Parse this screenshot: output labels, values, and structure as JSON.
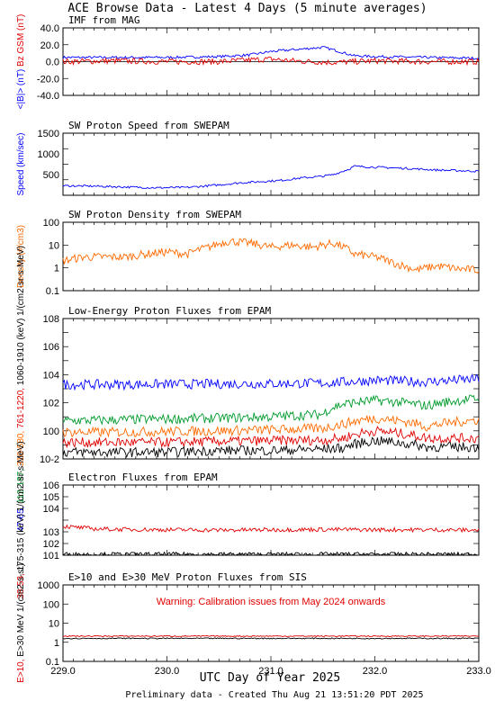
{
  "header": {
    "title": "ACE Browse Data - Latest 4 Days (5 minute averages)"
  },
  "x_axis": {
    "title": "UTC Day of Year 2025",
    "range": [
      229.0,
      233.0
    ],
    "ticks": [
      "229.0",
      "230.0",
      "231.0",
      "232.0",
      "233.0"
    ]
  },
  "footer": {
    "text": "Preliminary data - Created Thu Aug 21 13:51:20 PDT 2025"
  },
  "colors": {
    "blue": "#0000ff",
    "red": "#e00000",
    "green": "#009a2c",
    "orange": "#ff6a00",
    "black": "#000000"
  },
  "chart_data": [
    {
      "type": "line",
      "title": "IMF from MAG",
      "scale": "linear",
      "ylim": [
        -40,
        40
      ],
      "y_ticks": [
        "-40.0",
        "-20.0",
        "0.0",
        "20.0",
        "40.0"
      ],
      "ylabel_parts": [
        {
          "text": "<|B|> (nT)",
          "color": "#0000ff"
        },
        {
          "text": "Bz GSM (nT)",
          "color": "#e00000"
        }
      ],
      "series": [
        {
          "color": "#0000ff",
          "x": [
            229.0,
            229.5,
            230.0,
            230.5,
            230.8,
            231.0,
            231.2,
            231.4,
            231.5,
            231.6,
            231.8,
            232.0,
            232.5,
            233.0
          ],
          "y": [
            5,
            5,
            5,
            6,
            8,
            12,
            14,
            16,
            17,
            14,
            7,
            6,
            5,
            4
          ]
        },
        {
          "color": "#e00000",
          "x": [
            229.0,
            229.5,
            230.0,
            230.5,
            230.8,
            231.0,
            231.2,
            231.4,
            231.6,
            231.8,
            232.0,
            232.5,
            233.0
          ],
          "y": [
            0,
            1,
            0,
            0,
            2,
            3,
            1,
            0,
            -1,
            0,
            1,
            0,
            0
          ]
        }
      ]
    },
    {
      "type": "line",
      "title": "SW Proton Speed from SWEPAM",
      "scale": "linear",
      "ylim": [
        0,
        1500
      ],
      "y_ticks": [
        "500",
        "1000",
        "1500"
      ],
      "ylabel_parts": [
        {
          "text": "Speed (km/sec)",
          "color": "#0000ff"
        }
      ],
      "series": [
        {
          "color": "#0000ff",
          "x": [
            229.0,
            229.3,
            229.6,
            229.9,
            230.2,
            230.5,
            230.7,
            230.9,
            231.1,
            231.3,
            231.5,
            231.6,
            231.75,
            231.8,
            232.0,
            232.3,
            232.6,
            233.0
          ],
          "y": [
            230,
            220,
            200,
            180,
            190,
            250,
            300,
            330,
            360,
            420,
            460,
            500,
            630,
            700,
            680,
            650,
            610,
            580
          ]
        }
      ]
    },
    {
      "type": "line",
      "title": "SW Proton Density from SWEPAM",
      "scale": "log",
      "ylim_exp": [
        -1,
        2
      ],
      "y_ticks": [
        "0.1",
        "1",
        "10",
        "100"
      ],
      "ylabel_parts": [
        {
          "text": "Density (#/cm3)",
          "color": "#ff6a00"
        }
      ],
      "series": [
        {
          "color": "#ff6a00",
          "x": [
            229.0,
            229.2,
            229.4,
            229.6,
            229.8,
            230.0,
            230.2,
            230.4,
            230.6,
            230.8,
            231.0,
            231.2,
            231.4,
            231.6,
            231.8,
            232.0,
            232.2,
            232.4,
            232.6,
            232.8,
            233.0
          ],
          "y": [
            2,
            3,
            3,
            3,
            4,
            5,
            4,
            8,
            15,
            12,
            8,
            10,
            8,
            12,
            4,
            3,
            1.5,
            0.8,
            1.2,
            0.9,
            0.8
          ]
        }
      ]
    },
    {
      "type": "line",
      "title": "Low-Energy Proton Fluxes from EPAM",
      "scale": "log",
      "ylim_exp": [
        -2,
        8
      ],
      "y_ticks": [
        "10-2",
        "100",
        "102",
        "104",
        "106",
        "108"
      ],
      "ylabel_parts": [
        {
          "text": "47-65,",
          "color": "#0000ff"
        },
        {
          "text": "112-187,",
          "color": "#009a2c"
        },
        {
          "text": "310-580,",
          "color": "#ff6a00"
        },
        {
          "text": "761-1220,",
          "color": "#e00000"
        },
        {
          "text": "1060-1910 (keV)",
          "color": "#000000"
        },
        {
          "text": "1/(cm2-sr-s-MeV)",
          "color": "#000000"
        }
      ],
      "series": [
        {
          "color": "#0000ff",
          "x": [
            229.0,
            229.5,
            230.0,
            230.5,
            231.0,
            231.5,
            231.7,
            232.0,
            232.5,
            233.0
          ],
          "y": [
            2000,
            2000,
            2100,
            2200,
            2300,
            2500,
            3000,
            4000,
            3000,
            5000
          ]
        },
        {
          "color": "#009a2c",
          "x": [
            229.0,
            229.5,
            230.0,
            230.5,
            231.0,
            231.5,
            231.7,
            232.0,
            232.5,
            233.0
          ],
          "y": [
            5,
            6,
            7,
            8,
            10,
            15,
            80,
            150,
            60,
            200
          ]
        },
        {
          "color": "#ff6a00",
          "x": [
            229.0,
            229.5,
            230.0,
            230.5,
            231.0,
            231.5,
            231.7,
            232.0,
            232.5,
            233.0
          ],
          "y": [
            0.8,
            0.8,
            0.9,
            1,
            1.2,
            1.5,
            3,
            8,
            2,
            6
          ]
        },
        {
          "color": "#e00000",
          "x": [
            229.0,
            229.5,
            230.0,
            230.5,
            231.0,
            231.5,
            231.7,
            232.0,
            232.5,
            233.0
          ],
          "y": [
            0.15,
            0.15,
            0.15,
            0.18,
            0.2,
            0.22,
            0.3,
            1,
            0.3,
            0.3
          ]
        },
        {
          "color": "#000000",
          "x": [
            229.0,
            229.5,
            230.0,
            230.5,
            231.0,
            231.5,
            231.7,
            232.0,
            232.5,
            233.0
          ],
          "y": [
            0.03,
            0.03,
            0.03,
            0.04,
            0.04,
            0.05,
            0.06,
            0.2,
            0.07,
            0.07
          ]
        }
      ]
    },
    {
      "type": "line",
      "title": "Electron Fluxes from EPAM",
      "scale": "log",
      "ylim_exp": [
        1,
        7
      ],
      "y_ticks": [
        "101",
        "102",
        "103",
        "104",
        "105",
        "106"
      ],
      "ylabel_parts": [
        {
          "text": "38-53,",
          "color": "#e00000"
        },
        {
          "text": "175-315 (keV)",
          "color": "#000000"
        },
        {
          "text": "1/(cm2-sr-s-MeV)",
          "color": "#000000"
        }
      ],
      "series": [
        {
          "color": "#e00000",
          "x": [
            229.0,
            229.1,
            229.3,
            229.6,
            230.0,
            230.5,
            231.0,
            231.5,
            232.0,
            232.5,
            233.0
          ],
          "y": [
            3000,
            2500,
            1800,
            1600,
            1500,
            1400,
            1500,
            1600,
            1500,
            1500,
            1400
          ]
        },
        {
          "color": "#000000",
          "x": [
            229.0,
            229.5,
            230.0,
            230.5,
            231.0,
            231.5,
            232.0,
            232.5,
            233.0
          ],
          "y": [
            12,
            12,
            12,
            12,
            12,
            12,
            12,
            12,
            12
          ]
        }
      ]
    },
    {
      "type": "line",
      "title": "E>10 and E>30 MeV Proton Fluxes from SIS",
      "scale": "log",
      "ylim_exp": [
        -1,
        3
      ],
      "y_ticks": [
        "0.1",
        "1",
        "10",
        "100",
        "1000"
      ],
      "annotation": "Warning: Calibration issues from May 2024 onwards",
      "ylabel_parts": [
        {
          "text": "E>10,",
          "color": "#e00000"
        },
        {
          "text": "E>30 MeV",
          "color": "#000000"
        },
        {
          "text": "1/(cm2-s-sr)",
          "color": "#000000"
        }
      ],
      "series": [
        {
          "color": "#e00000",
          "x": [
            229.0,
            230.0,
            231.0,
            232.0,
            233.0
          ],
          "y": [
            2.1,
            2.1,
            2.1,
            2.1,
            2.1
          ]
        },
        {
          "color": "#000000",
          "x": [
            229.0,
            230.0,
            231.0,
            232.0,
            233.0
          ],
          "y": [
            1.6,
            1.6,
            1.6,
            1.6,
            1.6
          ]
        }
      ]
    }
  ]
}
